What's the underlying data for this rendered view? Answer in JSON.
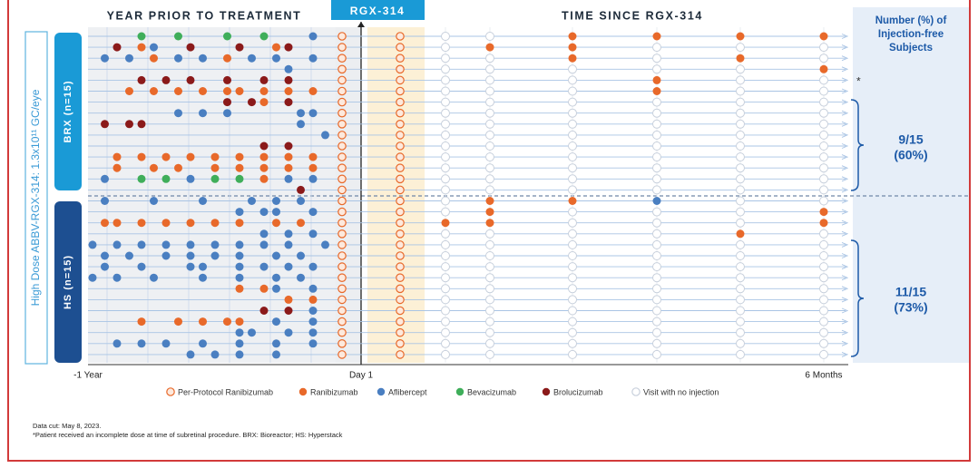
{
  "header": {
    "pre": "YEAR PRIOR TO TREATMENT",
    "tx": "RGX-314",
    "post": "TIME SINCE RGX-314",
    "side": [
      "Number (%) of",
      "Injection-free",
      "Subjects"
    ]
  },
  "dose_label": "High Dose ABBV-RGX-314: 1.3x10¹¹ GC/eye",
  "groups": [
    {
      "label": "BRX (n=15)",
      "result": [
        "9/15",
        "(60%)"
      ]
    },
    {
      "label": "HS (n=15)",
      "result": [
        "11/15",
        "(73%)"
      ]
    }
  ],
  "axis": [
    "-1 Year",
    "Day 1",
    "6 Months"
  ],
  "legend": [
    {
      "label": "Per-Protocol Ranibizumab",
      "color": "#e8692a"
    },
    {
      "label": "Ranibizumab",
      "color": "#e8692a"
    },
    {
      "label": "Aflibercept",
      "color": "#4a7fc1"
    },
    {
      "label": "Bevacizumab",
      "color": "#3fae5a"
    },
    {
      "label": "Brolucizumab",
      "color": "#8b1a1a"
    },
    {
      "label": "Visit with no injection",
      "color": "#c8d0dc"
    }
  ],
  "rows": [
    {
      "pre": "....3..3...3..3...2.",
      "post": "551111"
    },
    {
      "pre": "..4.12..4...4..14...",
      "post": "511555"
    },
    {
      "pre": ".2.2.1.2.2.1.2.2..2.",
      "post": "551515"
    },
    {
      "pre": "................2...",
      "post": "555551"
    },
    {
      "pre": "....4.4.4..4..4.4...",
      "post": "555155"
    },
    {
      "pre": "...1.1.1.1.11.1.1.1.",
      "post": "555155"
    },
    {
      "pre": "...........4.41.4...",
      "post": "555555"
    },
    {
      "pre": ".......2.2.2.....22.",
      "post": "555555"
    },
    {
      "pre": ".4.44............2..",
      "post": "555555"
    },
    {
      "pre": "...................2",
      "post": "555555"
    },
    {
      "pre": "..............4.4...",
      "post": "555555"
    },
    {
      "pre": "..1.1.1.1.1.1.1.1.1.",
      "post": "555555"
    },
    {
      "pre": "..1..1.1..1.1.1.1.1.",
      "post": "555555"
    },
    {
      "pre": ".2..3.3.2.3.3.1.2.2.",
      "post": "555555"
    },
    {
      "pre": ".................4..",
      "post": "555555"
    },
    {
      "pre": ".2...2...2...2.2.2..",
      "post": "511255"
    },
    {
      "pre": "............2.22..2.",
      "post": "515551"
    },
    {
      "pre": ".11.1.1.1.1.1..1.1..",
      "post": "115551"
    },
    {
      "pre": "..............2.2.2.",
      "post": "555515"
    },
    {
      "pre": "2.2.2.2.2.2.2.2.2..2",
      "post": "555555"
    },
    {
      "pre": ".2.2..2.2.2.2..2.2..",
      "post": "555555"
    },
    {
      "pre": ".2..2...22..2.2.2.2.",
      "post": "555555"
    },
    {
      "pre": "2.2..2...2..2..2.2..",
      "post": "555555"
    },
    {
      "pre": "............1.12..2.",
      "post": "555555"
    },
    {
      "pre": "................1.1.",
      "post": "555555"
    },
    {
      "pre": "..............4.4.2.",
      "post": "555555"
    },
    {
      "pre": "....1..1.1.11..2..2.",
      "post": "555555"
    },
    {
      "pre": "............22..2.2.",
      "post": "555555"
    },
    {
      "pre": "..2.2.2..2..2..2..2.",
      "post": "555555"
    },
    {
      "pre": "........2.2.2..2....",
      "post": "555555"
    }
  ],
  "flag": {
    "row": 4,
    "text": "*"
  },
  "footnotes": [
    "Data cut: May 8, 2023.",
    "*Patient received an incomplete dose at time of subretinal procedure. BRX: Bioreactor; HS: Hyperstack"
  ]
}
